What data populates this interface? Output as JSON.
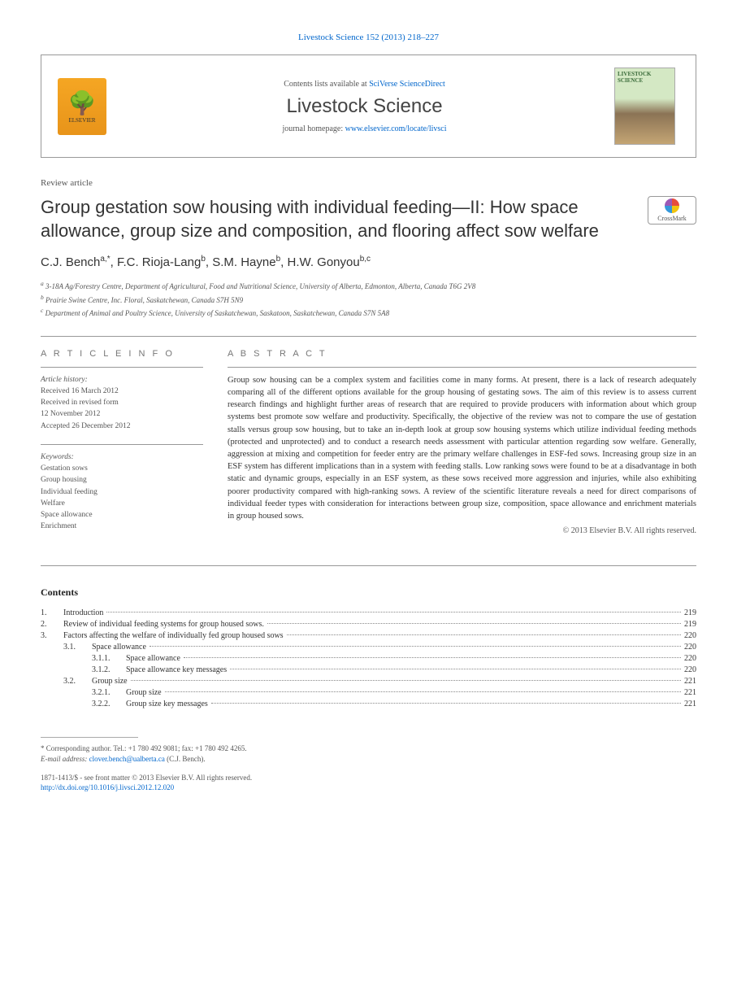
{
  "header": {
    "citation_journal": "Livestock Science",
    "citation_volume": "152 (2013) 218–227",
    "contents_prefix": "Contents lists available at",
    "contents_link": "SciVerse ScienceDirect",
    "journal_title": "Livestock Science",
    "homepage_prefix": "journal homepage:",
    "homepage_url": "www.elsevier.com/locate/livsci",
    "publisher": "ELSEVIER",
    "cover_text": "LIVESTOCK SCIENCE"
  },
  "article": {
    "type": "Review article",
    "title": "Group gestation sow housing with individual feeding—II: How space allowance, group size and composition, and flooring affect sow welfare",
    "crossmark": "CrossMark",
    "authors_html": "C.J. Bench",
    "authors": [
      {
        "name": "C.J. Bench",
        "sup": "a,*"
      },
      {
        "name": "F.C. Rioja-Lang",
        "sup": "b"
      },
      {
        "name": "S.M. Hayne",
        "sup": "b"
      },
      {
        "name": "H.W. Gonyou",
        "sup": "b,c"
      }
    ],
    "affiliations": [
      {
        "sup": "a",
        "text": "3-18A Ag/Forestry Centre, Department of Agricultural, Food and Nutritional Science, University of Alberta, Edmonton, Alberta, Canada T6G 2V8"
      },
      {
        "sup": "b",
        "text": "Prairie Swine Centre, Inc. Floral, Saskatchewan, Canada S7H 5N9"
      },
      {
        "sup": "c",
        "text": "Department of Animal and Poultry Science, University of Saskatchewan, Saskatoon, Saskatchewan, Canada S7N 5A8"
      }
    ]
  },
  "info": {
    "heading": "A R T I C L E   I N F O",
    "history_label": "Article history:",
    "history": [
      "Received 16 March 2012",
      "Received in revised form",
      "12 November 2012",
      "Accepted 26 December 2012"
    ],
    "keywords_label": "Keywords:",
    "keywords": [
      "Gestation sows",
      "Group housing",
      "Individual feeding",
      "Welfare",
      "Space allowance",
      "Enrichment"
    ]
  },
  "abstract": {
    "heading": "A B S T R A C T",
    "text": "Group sow housing can be a complex system and facilities come in many forms. At present, there is a lack of research adequately comparing all of the different options available for the group housing of gestating sows. The aim of this review is to assess current research findings and highlight further areas of research that are required to provide producers with information about which group systems best promote sow welfare and productivity. Specifically, the objective of the review was not to compare the use of gestation stalls versus group sow housing, but to take an in-depth look at group sow housing systems which utilize individual feeding methods (protected and unprotected) and to conduct a research needs assessment with particular attention regarding sow welfare. Generally, aggression at mixing and competition for feeder entry are the primary welfare challenges in ESF-fed sows. Increasing group size in an ESF system has different implications than in a system with feeding stalls. Low ranking sows were found to be at a disadvantage in both static and dynamic groups, especially in an ESF system, as these sows received more aggression and injuries, while also exhibiting poorer productivity compared with high-ranking sows. A review of the scientific literature reveals a need for direct comparisons of individual feeder types with consideration for interactions between group size, composition, space allowance and enrichment materials in group housed sows.",
    "copyright": "© 2013 Elsevier B.V. All rights reserved."
  },
  "contents": {
    "heading": "Contents",
    "items": [
      {
        "level": 1,
        "num": "1.",
        "title": "Introduction",
        "page": "219"
      },
      {
        "level": 1,
        "num": "2.",
        "title": "Review of individual feeding systems for group housed sows.",
        "page": "219"
      },
      {
        "level": 1,
        "num": "3.",
        "title": "Factors affecting the welfare of individually fed group housed sows",
        "page": "220"
      },
      {
        "level": 2,
        "num": "3.1.",
        "title": "Space allowance",
        "page": "220"
      },
      {
        "level": 3,
        "num": "3.1.1.",
        "title": "Space allowance",
        "page": "220"
      },
      {
        "level": 3,
        "num": "3.1.2.",
        "title": "Space allowance key messages",
        "page": "220"
      },
      {
        "level": 2,
        "num": "3.2.",
        "title": "Group size",
        "page": "221"
      },
      {
        "level": 3,
        "num": "3.2.1.",
        "title": "Group size",
        "page": "221"
      },
      {
        "level": 3,
        "num": "3.2.2.",
        "title": "Group size key messages",
        "page": "221"
      }
    ]
  },
  "footer": {
    "corresponding": "* Corresponding author. Tel.: +1 780 492 9081; fax: +1 780 492 4265.",
    "email_label": "E-mail address:",
    "email": "clover.bench@ualberta.ca",
    "email_author": "(C.J. Bench).",
    "issn": "1871-1413/$ - see front matter © 2013 Elsevier B.V. All rights reserved.",
    "doi": "http://dx.doi.org/10.1016/j.livsci.2012.12.020"
  }
}
